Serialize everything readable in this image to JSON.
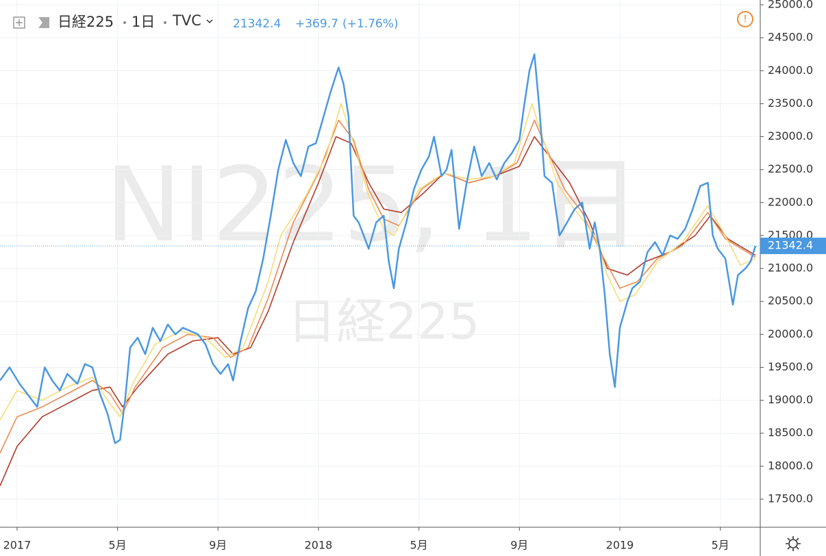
{
  "header": {
    "symbol": "日経225",
    "interval": "1日",
    "exchange": "TVC",
    "change": "+369.7",
    "change_pct": "(+1.76%)"
  },
  "watermark": {
    "line1": "NI225, 1日",
    "line2": "日経225"
  },
  "chart_data": {
    "type": "line",
    "last_price": 21342.4,
    "xlim": [
      -0.68,
      29.59
    ],
    "ylim": [
      17074,
      25073
    ],
    "xticks": [
      {
        "value": 0,
        "label": "2017"
      },
      {
        "value": 4,
        "label": "5月"
      },
      {
        "value": 8,
        "label": "9月"
      },
      {
        "value": 12,
        "label": "2018"
      },
      {
        "value": 16,
        "label": "5月"
      },
      {
        "value": 20,
        "label": "9月"
      },
      {
        "value": 24,
        "label": "2019"
      },
      {
        "value": 28,
        "label": "5月"
      }
    ],
    "yticks": [
      {
        "value": 17500,
        "label": "17500.0"
      },
      {
        "value": 18000,
        "label": "18000.0"
      },
      {
        "value": 18500,
        "label": "18500.0"
      },
      {
        "value": 19000,
        "label": "19000.0"
      },
      {
        "value": 19500,
        "label": "19500.0"
      },
      {
        "value": 20000,
        "label": "20000.0"
      },
      {
        "value": 20500,
        "label": "20500.0"
      },
      {
        "value": 21000,
        "label": "21000.0"
      },
      {
        "value": 21500,
        "label": "21500.0"
      },
      {
        "value": 22000,
        "label": "22000.0"
      },
      {
        "value": 22500,
        "label": "22500.0"
      },
      {
        "value": 23000,
        "label": "23000.0"
      },
      {
        "value": 23500,
        "label": "23500.0"
      },
      {
        "value": 24000,
        "label": "24000.0"
      },
      {
        "value": 24500,
        "label": "24500.0"
      },
      {
        "value": 25000,
        "label": "25000.0"
      }
    ],
    "grid": true,
    "series": [
      {
        "color": "#b23a2a",
        "x": [
          -0.68,
          0,
          1,
          2,
          3,
          3.7,
          4.2,
          4.8,
          6,
          7,
          8,
          8.6,
          9.3,
          10,
          11,
          12,
          12.7,
          13.3,
          14,
          14.6,
          15.3,
          16.2,
          17,
          18,
          19,
          20,
          20.6,
          21.2,
          22,
          22.8,
          23.5,
          24.3,
          25,
          26,
          27,
          27.6,
          28.3,
          29.4
        ],
        "values": [
          17700,
          18300,
          18750,
          18950,
          19150,
          19200,
          18900,
          19200,
          19700,
          19900,
          19950,
          19700,
          19800,
          20350,
          21400,
          22300,
          23000,
          22900,
          22300,
          21900,
          21850,
          22150,
          22450,
          22300,
          22400,
          22550,
          23000,
          22700,
          22300,
          21700,
          21000,
          20900,
          21100,
          21250,
          21500,
          21800,
          21450,
          21200
        ]
      },
      {
        "color": "#ee8a52",
        "x": [
          -0.68,
          0,
          1,
          2,
          3,
          3.7,
          4.2,
          4.7,
          5.8,
          6.8,
          7.8,
          8.5,
          9.2,
          10,
          11,
          12,
          12.8,
          13.4,
          14,
          14.6,
          15.2,
          16.1,
          17,
          18,
          19,
          19.9,
          20.6,
          21.1,
          21.8,
          22.5,
          23.3,
          24,
          24.7,
          25.5,
          26.5,
          27.5,
          28.2,
          29.4
        ],
        "values": [
          18200,
          18750,
          18900,
          19100,
          19300,
          19100,
          18800,
          19200,
          19800,
          20000,
          19950,
          19650,
          19800,
          20550,
          21700,
          22450,
          23250,
          22950,
          22200,
          21750,
          21650,
          22200,
          22450,
          22300,
          22400,
          22600,
          23250,
          22800,
          22200,
          21850,
          21200,
          20700,
          20800,
          21150,
          21350,
          21850,
          21450,
          21170
        ]
      },
      {
        "color": "#f5dc78",
        "x": [
          -0.68,
          0,
          1,
          2,
          3,
          3.7,
          4.1,
          4.6,
          5.5,
          6.5,
          7.5,
          8.3,
          9,
          10,
          10.5,
          11.5,
          12.3,
          12.9,
          13.4,
          14,
          14.6,
          15,
          16,
          17,
          18,
          19,
          19.8,
          20.5,
          21,
          21.5,
          22,
          23,
          23.5,
          24,
          24.6,
          25.5,
          26.5,
          27.5,
          28.2,
          28.8,
          29.4
        ],
        "values": [
          18700,
          19150,
          19000,
          19200,
          19350,
          18950,
          18750,
          19250,
          19850,
          20050,
          19950,
          19650,
          19800,
          20800,
          21500,
          22100,
          22700,
          23500,
          22900,
          22100,
          21600,
          21500,
          22200,
          22450,
          22350,
          22400,
          22600,
          23500,
          22900,
          22300,
          22000,
          21500,
          20900,
          20500,
          20600,
          21100,
          21400,
          21950,
          21500,
          21050,
          21150
        ]
      },
      {
        "color": "#4a98e0",
        "x": [
          -0.68,
          -0.3,
          0.1,
          0.4,
          0.8,
          1.1,
          1.4,
          1.7,
          2,
          2.4,
          2.7,
          3,
          3.3,
          3.6,
          3.9,
          4.1,
          4.3,
          4.5,
          4.8,
          5.1,
          5.4,
          5.7,
          6,
          6.3,
          6.6,
          6.9,
          7.2,
          7.5,
          7.8,
          8.1,
          8.4,
          8.6,
          8.9,
          9.2,
          9.5,
          9.8,
          10.1,
          10.4,
          10.7,
          11,
          11.3,
          11.6,
          11.9,
          12.2,
          12.5,
          12.8,
          13,
          13.2,
          13.4,
          13.6,
          13.8,
          14,
          14.3,
          14.6,
          14.8,
          15,
          15.2,
          15.5,
          15.8,
          16.1,
          16.4,
          16.6,
          16.9,
          17.1,
          17.3,
          17.6,
          17.9,
          18.2,
          18.5,
          18.8,
          19.1,
          19.4,
          19.7,
          20,
          20.2,
          20.4,
          20.6,
          20.8,
          21,
          21.3,
          21.6,
          21.9,
          22.2,
          22.5,
          22.8,
          23,
          23.2,
          23.4,
          23.6,
          23.8,
          24,
          24.3,
          24.5,
          24.8,
          25.1,
          25.4,
          25.7,
          26,
          26.3,
          26.6,
          26.9,
          27.2,
          27.5,
          27.7,
          27.9,
          28.2,
          28.5,
          28.7,
          29,
          29.2,
          29.4
        ],
        "values": [
          19300,
          19500,
          19250,
          19100,
          18900,
          19500,
          19300,
          19150,
          19400,
          19250,
          19550,
          19500,
          19100,
          18800,
          18350,
          18400,
          19000,
          19800,
          19950,
          19700,
          20100,
          19900,
          20150,
          20000,
          20100,
          20050,
          20000,
          19850,
          19550,
          19400,
          19550,
          19300,
          19900,
          20400,
          20650,
          21150,
          21800,
          22500,
          22950,
          22600,
          22400,
          22850,
          22900,
          23300,
          23700,
          24050,
          23800,
          23300,
          21800,
          21700,
          21500,
          21300,
          21700,
          21800,
          21100,
          20700,
          21300,
          21700,
          22200,
          22500,
          22700,
          23000,
          22400,
          22500,
          22800,
          21600,
          22300,
          22850,
          22400,
          22600,
          22350,
          22600,
          22750,
          22950,
          23500,
          24000,
          24250,
          23400,
          22400,
          22300,
          21500,
          21700,
          21900,
          22000,
          21300,
          21700,
          21300,
          20600,
          19700,
          19200,
          20100,
          20500,
          20700,
          20800,
          21250,
          21400,
          21200,
          21500,
          21450,
          21600,
          21900,
          22250,
          22300,
          21500,
          21300,
          21150,
          20450,
          20900,
          21000,
          21100,
          21342.4
        ]
      }
    ]
  }
}
